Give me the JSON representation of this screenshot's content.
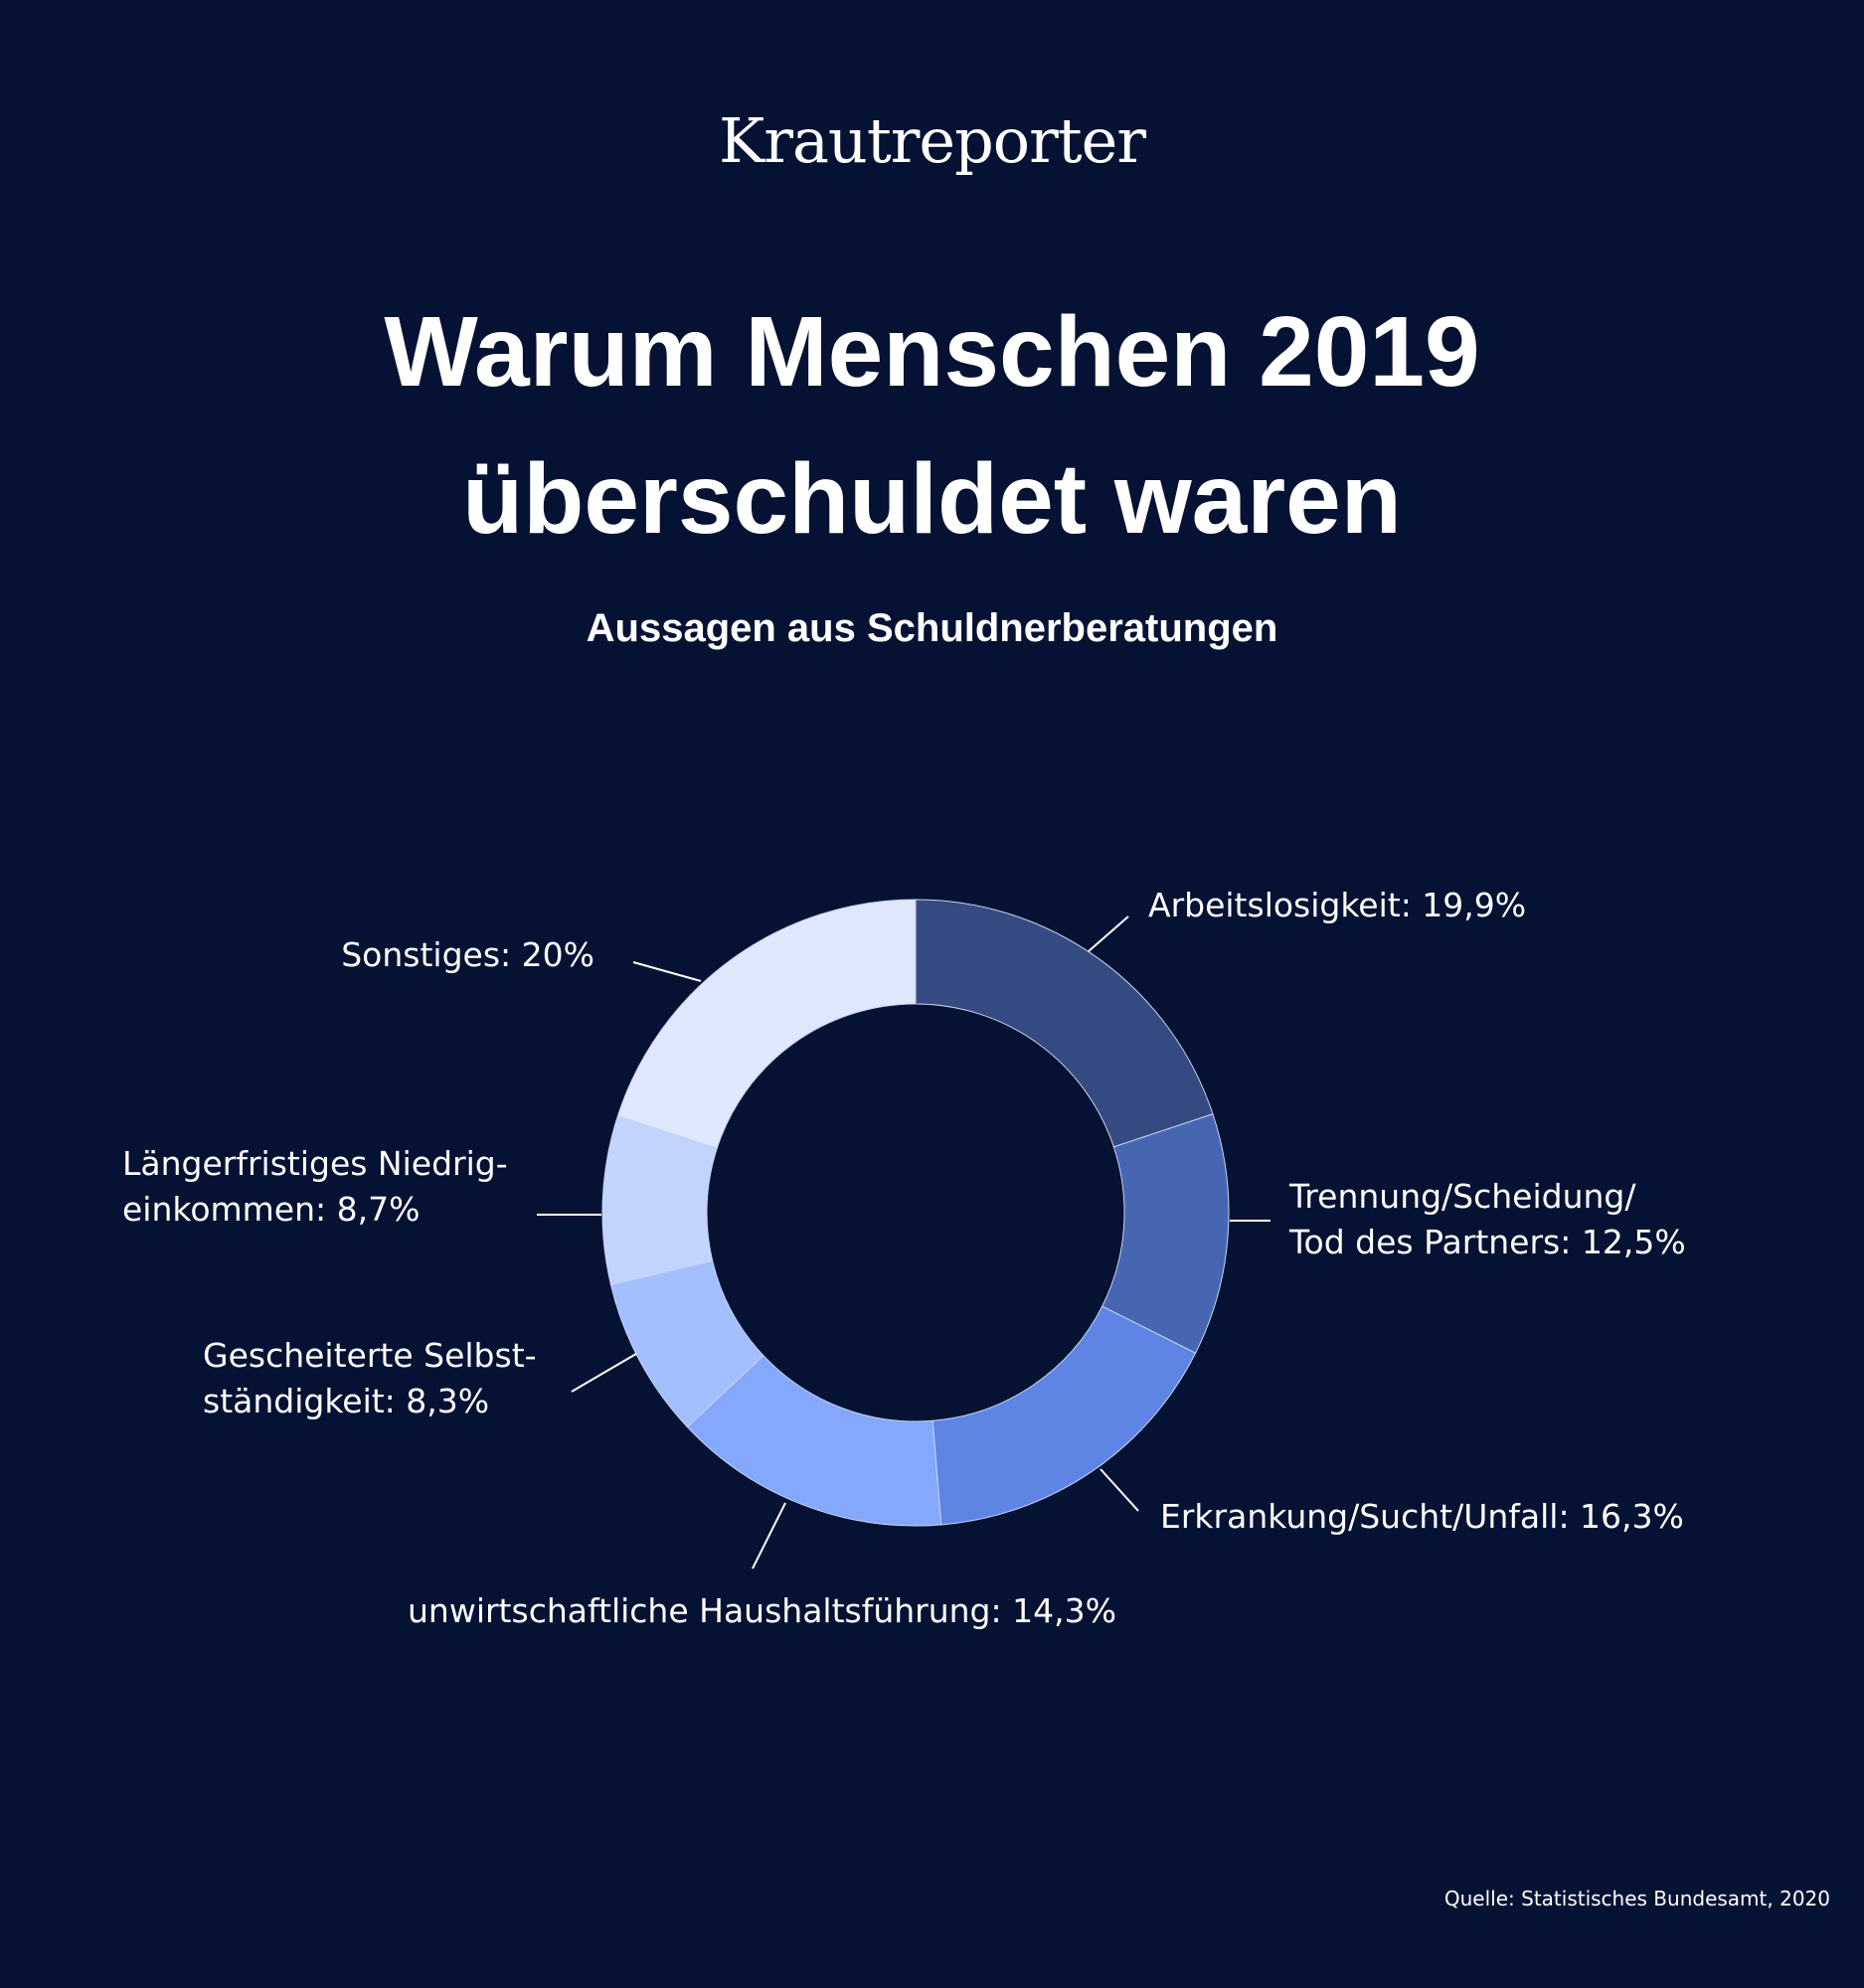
{
  "header": {
    "logo": "Krautreporter",
    "title_line1": "Warum Menschen 2019",
    "title_line2": "überschuldet waren",
    "subtitle": "Aussagen aus Schuldnerberatungen"
  },
  "footer": {
    "source": "Quelle: Statistisches Bundesamt, 2020"
  },
  "chart_data": {
    "type": "pie",
    "donut": true,
    "title": "Warum Menschen 2019 überschuldet waren",
    "subtitle": "Aussagen aus Schuldnerberatungen",
    "unit": "%",
    "slices": [
      {
        "name": "Arbeitslosigkeit",
        "value": 19.9,
        "label_lines": [
          "Arbeitslosigkeit: 19,9%"
        ],
        "color": "#354a80"
      },
      {
        "name": "Trennung/Scheidung/Tod des Partners",
        "value": 12.5,
        "label_lines": [
          "Trennung/Scheidung/",
          "Tod des Partners: 12,5%"
        ],
        "color": "#4766b2"
      },
      {
        "name": "Erkrankung/Sucht/Unfall",
        "value": 16.3,
        "label_lines": [
          "Erkrankung/Sucht/Unfall: 16,3%"
        ],
        "color": "#5e85e3"
      },
      {
        "name": "unwirtschaftliche Haushaltsführung",
        "value": 14.3,
        "label_lines": [
          "unwirtschaftliche Haushaltsführung: 14,3%"
        ],
        "color": "#84a8fb"
      },
      {
        "name": "Gescheiterte Selbstständigkeit",
        "value": 8.3,
        "label_lines": [
          "Gescheiterte Selbst-",
          "ständigkeit: 8,3%"
        ],
        "color": "#a4bffd"
      },
      {
        "name": "Längerfristiges Niedrigeinkommen",
        "value": 8.7,
        "label_lines": [
          "Längerfristiges Niedrig-",
          "einkommen: 8,7%"
        ],
        "color": "#c3d4fc"
      },
      {
        "name": "Sonstiges",
        "value": 20,
        "label_lines": [
          "Sonstiges: 20%"
        ],
        "color": "#dfe8fd"
      }
    ]
  }
}
